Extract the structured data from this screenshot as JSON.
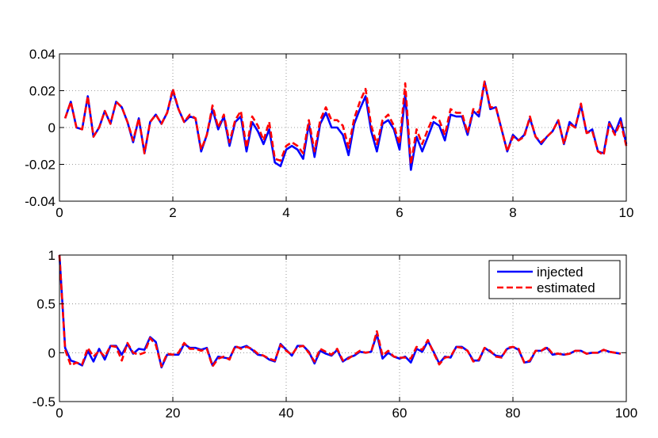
{
  "chart_data": [
    {
      "type": "line",
      "title": "",
      "xlabel": "",
      "ylabel": "",
      "xlim": [
        0,
        10
      ],
      "ylim": [
        -0.04,
        0.04
      ],
      "xticks": [
        0,
        2,
        4,
        6,
        8,
        10
      ],
      "yticks": [
        -0.04,
        -0.02,
        0,
        0.02,
        0.04
      ],
      "xtick_labels": [
        "0",
        "2",
        "4",
        "6",
        "8",
        "10"
      ],
      "ytick_labels": [
        "-0.04",
        "-0.02",
        "0",
        "0.02",
        "0.04"
      ],
      "grid": true,
      "legend": "none",
      "x": [
        0.1,
        0.2,
        0.3,
        0.4,
        0.5,
        0.6,
        0.7,
        0.8,
        0.9,
        1.0,
        1.1,
        1.2,
        1.3,
        1.4,
        1.5,
        1.6,
        1.7,
        1.8,
        1.9,
        2.0,
        2.1,
        2.2,
        2.3,
        2.4,
        2.5,
        2.6,
        2.7,
        2.8,
        2.9,
        3.0,
        3.1,
        3.2,
        3.3,
        3.4,
        3.5,
        3.6,
        3.7,
        3.8,
        3.9,
        4.0,
        4.1,
        4.2,
        4.3,
        4.4,
        4.5,
        4.6,
        4.7,
        4.8,
        4.9,
        5.0,
        5.1,
        5.2,
        5.3,
        5.4,
        5.5,
        5.6,
        5.7,
        5.8,
        5.9,
        6.0,
        6.1,
        6.2,
        6.3,
        6.4,
        6.5,
        6.6,
        6.7,
        6.8,
        6.9,
        7.0,
        7.1,
        7.2,
        7.3,
        7.4,
        7.5,
        7.6,
        7.7,
        7.8,
        7.9,
        8.0,
        8.1,
        8.2,
        8.3,
        8.4,
        8.5,
        8.6,
        8.7,
        8.8,
        8.9,
        9.0,
        9.1,
        9.2,
        9.3,
        9.4,
        9.5,
        9.6,
        9.7,
        9.8,
        9.9,
        10.0
      ],
      "series": [
        {
          "name": "injected",
          "color": "#0000ff",
          "dash": "solid",
          "values": [
            0.005,
            0.014,
            0.0,
            -0.001,
            0.017,
            -0.005,
            0.0,
            0.009,
            0.002,
            0.014,
            0.011,
            0.003,
            -0.008,
            0.005,
            -0.014,
            0.003,
            0.007,
            0.002,
            0.008,
            0.02,
            0.01,
            0.003,
            0.006,
            0.005,
            -0.013,
            -0.004,
            0.01,
            -0.001,
            0.006,
            -0.01,
            0.003,
            0.006,
            -0.013,
            0.003,
            -0.002,
            -0.009,
            -0.001,
            -0.019,
            -0.021,
            -0.012,
            -0.01,
            -0.012,
            -0.017,
            0.002,
            -0.016,
            0.002,
            0.008,
            0.0,
            0.0,
            -0.004,
            -0.015,
            0.002,
            0.01,
            0.017,
            -0.002,
            -0.013,
            0.002,
            0.004,
            -0.001,
            -0.012,
            0.018,
            -0.023,
            -0.005,
            -0.013,
            -0.005,
            0.003,
            0.001,
            -0.007,
            0.007,
            0.006,
            0.006,
            -0.004,
            0.009,
            0.006,
            0.025,
            0.01,
            0.011,
            -0.001,
            -0.013,
            -0.004,
            -0.007,
            -0.004,
            0.005,
            -0.005,
            -0.009,
            -0.005,
            -0.002,
            0.004,
            -0.009,
            0.003,
            0.0,
            0.012,
            -0.003,
            -0.001,
            -0.013,
            -0.014,
            0.003,
            -0.003,
            0.005,
            -0.009
          ]
        },
        {
          "name": "estimated",
          "color": "#ff0000",
          "dash": "dashed",
          "values": [
            0.005,
            0.014,
            0.0,
            -0.001,
            0.017,
            -0.005,
            0.0,
            0.009,
            0.002,
            0.014,
            0.011,
            0.003,
            -0.007,
            0.005,
            -0.014,
            0.003,
            0.007,
            0.002,
            0.008,
            0.021,
            0.01,
            0.003,
            0.007,
            0.005,
            -0.012,
            -0.004,
            0.012,
            0.0,
            0.007,
            -0.008,
            0.004,
            0.009,
            -0.011,
            0.006,
            0.001,
            -0.007,
            0.003,
            -0.017,
            -0.018,
            -0.01,
            -0.008,
            -0.01,
            -0.014,
            0.004,
            -0.013,
            0.004,
            0.011,
            0.004,
            0.004,
            0.001,
            -0.011,
            0.005,
            0.014,
            0.021,
            0.001,
            -0.009,
            0.004,
            0.007,
            0.001,
            -0.009,
            0.024,
            -0.02,
            -0.001,
            -0.009,
            -0.001,
            0.006,
            0.004,
            -0.004,
            0.01,
            0.008,
            0.008,
            -0.003,
            0.01,
            0.008,
            0.025,
            0.011,
            0.011,
            -0.001,
            -0.013,
            -0.005,
            -0.007,
            -0.005,
            0.006,
            -0.005,
            -0.008,
            -0.005,
            -0.002,
            0.004,
            -0.009,
            0.002,
            0.0,
            0.013,
            -0.003,
            -0.002,
            -0.013,
            -0.015,
            0.002,
            -0.004,
            0.003,
            -0.01
          ]
        }
      ]
    },
    {
      "type": "line",
      "title": "",
      "xlabel": "",
      "ylabel": "",
      "xlim": [
        0,
        100
      ],
      "ylim": [
        -0.5,
        1
      ],
      "xticks": [
        0,
        20,
        40,
        60,
        80,
        100
      ],
      "yticks": [
        -0.5,
        0,
        0.5,
        1
      ],
      "xtick_labels": [
        "0",
        "20",
        "40",
        "60",
        "80",
        "100"
      ],
      "ytick_labels": [
        "-0.5",
        "0",
        "0.5",
        "1"
      ],
      "grid": true,
      "legend": "top-right",
      "x": [
        0,
        1,
        2,
        3,
        4,
        5,
        6,
        7,
        8,
        9,
        10,
        11,
        12,
        13,
        14,
        15,
        16,
        17,
        18,
        19,
        20,
        21,
        22,
        23,
        24,
        25,
        26,
        27,
        28,
        29,
        30,
        31,
        32,
        33,
        34,
        35,
        36,
        37,
        38,
        39,
        40,
        41,
        42,
        43,
        44,
        45,
        46,
        47,
        48,
        49,
        50,
        51,
        52,
        53,
        54,
        55,
        56,
        57,
        58,
        59,
        60,
        61,
        62,
        63,
        64,
        65,
        66,
        67,
        68,
        69,
        70,
        71,
        72,
        73,
        74,
        75,
        76,
        77,
        78,
        79,
        80,
        81,
        82,
        83,
        84,
        85,
        86,
        87,
        88,
        89,
        90,
        91,
        92,
        93,
        94,
        95,
        96,
        97,
        98,
        99
      ],
      "series": [
        {
          "name": "injected",
          "color": "#0000ff",
          "dash": "solid",
          "values": [
            1.0,
            0.05,
            -0.08,
            -0.1,
            -0.13,
            0.02,
            -0.09,
            0.04,
            -0.07,
            0.07,
            0.07,
            -0.02,
            0.09,
            -0.01,
            0.04,
            0.03,
            0.16,
            0.11,
            -0.15,
            -0.02,
            -0.02,
            -0.02,
            0.09,
            0.05,
            0.05,
            0.03,
            0.05,
            -0.13,
            -0.04,
            -0.05,
            -0.06,
            0.06,
            0.05,
            0.07,
            0.03,
            -0.02,
            -0.03,
            -0.07,
            -0.09,
            0.09,
            0.03,
            -0.03,
            0.07,
            0.07,
            0.01,
            -0.11,
            0.02,
            -0.01,
            -0.03,
            0.03,
            -0.09,
            -0.05,
            -0.03,
            0.01,
            0.0,
            0.01,
            0.19,
            -0.06,
            0.0,
            -0.04,
            -0.06,
            -0.04,
            -0.1,
            0.04,
            0.01,
            0.12,
            0.01,
            -0.11,
            -0.04,
            -0.05,
            0.06,
            0.06,
            0.02,
            -0.08,
            -0.08,
            0.05,
            0.01,
            -0.03,
            -0.04,
            0.04,
            0.06,
            0.03,
            -0.1,
            -0.09,
            0.02,
            0.02,
            0.05,
            -0.02,
            -0.01,
            -0.02,
            -0.01,
            0.02,
            0.02,
            -0.01,
            0.0,
            0.0,
            0.03,
            0.01,
            0.0,
            -0.01
          ]
        },
        {
          "name": "estimated",
          "color": "#ff0000",
          "dash": "dashed",
          "values": [
            1.0,
            0.03,
            -0.13,
            -0.1,
            -0.12,
            0.05,
            -0.04,
            0.02,
            -0.04,
            0.07,
            0.06,
            -0.08,
            0.1,
            0.0,
            -0.02,
            0.0,
            0.15,
            0.08,
            -0.14,
            -0.01,
            -0.02,
            0.0,
            0.1,
            0.04,
            0.04,
            0.02,
            0.04,
            -0.14,
            -0.06,
            -0.04,
            -0.07,
            0.07,
            0.04,
            0.06,
            0.04,
            -0.01,
            -0.03,
            -0.06,
            -0.08,
            0.08,
            0.02,
            -0.02,
            0.06,
            0.07,
            0.0,
            -0.09,
            0.04,
            0.01,
            -0.02,
            0.04,
            -0.08,
            -0.06,
            -0.02,
            0.02,
            0.0,
            0.01,
            0.22,
            -0.03,
            0.02,
            -0.04,
            -0.05,
            -0.05,
            -0.06,
            0.06,
            0.03,
            0.13,
            0.0,
            -0.12,
            -0.05,
            -0.04,
            0.06,
            0.05,
            0.02,
            -0.09,
            -0.07,
            0.05,
            0.02,
            -0.04,
            -0.05,
            0.05,
            0.06,
            0.04,
            -0.1,
            -0.08,
            0.02,
            0.02,
            0.06,
            -0.01,
            -0.01,
            -0.02,
            -0.01,
            0.02,
            0.02,
            -0.01,
            0.0,
            0.0,
            0.03,
            0.01,
            0.0,
            -0.01
          ]
        }
      ]
    }
  ]
}
